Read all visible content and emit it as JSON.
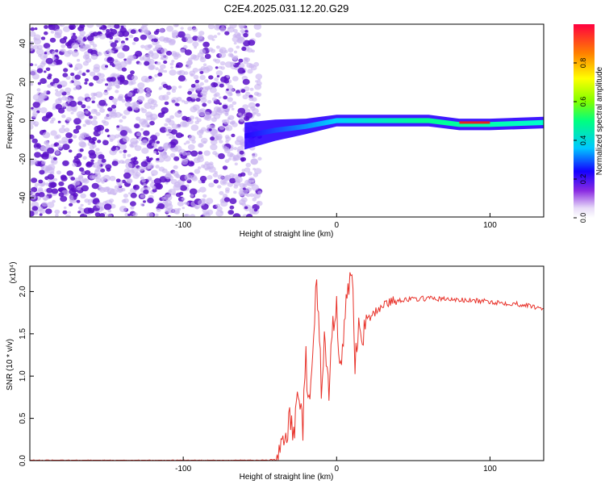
{
  "figure": {
    "title": "C2E4.2025.031.12.20.G29",
    "colors": {
      "snr_line": "#e8322a",
      "scatter_dark": "#5a10c8",
      "scatter_light": "#c8b2f0"
    }
  },
  "chart_data": [
    {
      "type": "heatmap",
      "xlabel": "Height of straight line (km)",
      "ylabel": "Frequency (Hz)",
      "xlim": [
        -200,
        135
      ],
      "ylim": [
        -50,
        50
      ],
      "xticks": [
        -100,
        0,
        100
      ],
      "xtick_labels": [
        "-100",
        "0",
        "100"
      ],
      "yticks": [
        -40,
        -20,
        0,
        20,
        40
      ],
      "ytick_labels": [
        "-40",
        "-20",
        "0",
        "20",
        "40"
      ],
      "noise_region_x": [
        -200,
        -50
      ],
      "ridge": {
        "x": [
          -60,
          -40,
          -20,
          0,
          20,
          60,
          80,
          100,
          135
        ],
        "y": [
          -8,
          -5,
          -3,
          0,
          0,
          0,
          -2,
          -2,
          -1
        ]
      },
      "colorbar": {
        "label": "Normalized spectral amplitude",
        "ticks": [
          0.0,
          0.2,
          0.4,
          0.6,
          0.8
        ],
        "tick_labels": [
          "0.0",
          "0.2",
          "0.4",
          "0.6",
          "0.8"
        ],
        "range": [
          0,
          1
        ]
      },
      "grid": false
    },
    {
      "type": "line",
      "xlabel": "Height of straight line (km)",
      "ylabel": "SNR (10 * v/v)",
      "scale_label": "(x10⁴)",
      "xlim": [
        -200,
        135
      ],
      "ylim": [
        0,
        2.3
      ],
      "xticks": [
        -100,
        0,
        100
      ],
      "xtick_labels": [
        "-100",
        "0",
        "100"
      ],
      "yticks": [
        0.0,
        0.5,
        1.0,
        1.5,
        2.0
      ],
      "ytick_labels": [
        "0.0",
        "0.5",
        "1.0",
        "1.5",
        "2.0"
      ],
      "series": [
        {
          "x": [
            -200,
            -100,
            -50,
            -40,
            -35,
            -30,
            -28,
            -25,
            -22,
            -20,
            -18,
            -15,
            -13,
            -10,
            -8,
            -5,
            -3,
            0,
            2,
            5,
            8,
            10,
            12,
            15,
            18,
            20,
            25,
            30,
            40,
            60,
            80,
            100,
            120,
            135
          ],
          "y": [
            0.0,
            0.0,
            0.0,
            0.01,
            0.15,
            0.5,
            0.25,
            0.9,
            0.4,
            1.2,
            0.6,
            1.35,
            2.15,
            0.9,
            1.4,
            0.8,
            1.5,
            1.9,
            1.0,
            1.6,
            2.1,
            2.3,
            1.2,
            1.6,
            1.5,
            1.65,
            1.75,
            1.85,
            1.9,
            1.92,
            1.9,
            1.88,
            1.85,
            1.8
          ]
        }
      ],
      "grid": false
    }
  ]
}
